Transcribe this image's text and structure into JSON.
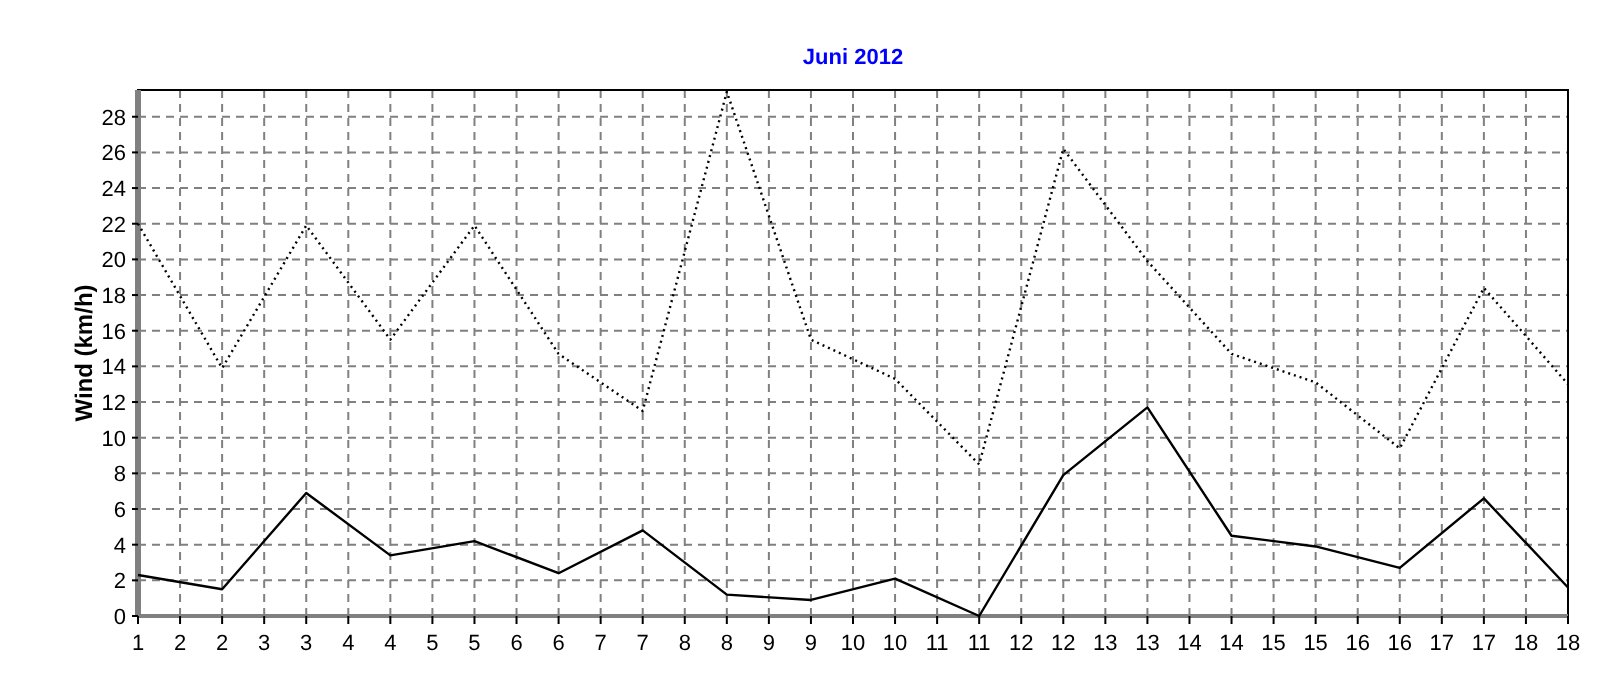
{
  "chart_data": {
    "type": "line",
    "title": "Juni 2012",
    "ylabel": "Wind  (km/h)",
    "x": [
      1,
      2,
      3,
      4,
      5,
      6,
      7,
      8,
      9,
      10,
      11,
      12,
      13,
      14,
      15,
      16,
      17,
      18
    ],
    "series": [
      {
        "color": "#000000",
        "line_style": "dotted",
        "values": [
          22.0,
          13.9,
          21.9,
          15.5,
          21.9,
          14.7,
          11.5,
          29.4,
          15.5,
          13.3,
          8.5,
          26.2,
          19.9,
          14.7,
          13.1,
          9.4,
          18.4,
          13.0
        ]
      },
      {
        "color": "#000000",
        "line_style": "solid",
        "values": [
          2.3,
          1.5,
          6.9,
          3.4,
          4.2,
          2.4,
          4.8,
          1.2,
          0.9,
          2.1,
          0,
          7.9,
          11.7,
          4.5,
          3.9,
          2.7,
          6.6,
          1.6
        ]
      }
    ],
    "xlim": [
      1,
      18
    ],
    "xticks": [
      1,
      {
        "value": 1.5,
        "label": "2"
      },
      2,
      {
        "value": 2.5,
        "label": "3"
      },
      3,
      {
        "value": 3.5,
        "label": "4"
      },
      4,
      {
        "value": 4.5,
        "label": "5"
      },
      5,
      {
        "value": 5.5,
        "label": "6"
      },
      6,
      {
        "value": 6.5,
        "label": "7"
      },
      7,
      {
        "value": 7.5,
        "label": "8"
      },
      8,
      {
        "value": 8.5,
        "label": "9"
      },
      9,
      {
        "value": 9.5,
        "label": "10"
      },
      10,
      {
        "value": 10.5,
        "label": "11"
      },
      11,
      {
        "value": 11.5,
        "label": "12"
      },
      12,
      {
        "value": 12.5,
        "label": "13"
      },
      13,
      {
        "value": 13.5,
        "label": "14"
      },
      14,
      {
        "value": 14.5,
        "label": "15"
      },
      15,
      {
        "value": 15.5,
        "label": "16"
      },
      16,
      {
        "value": 16.5,
        "label": "17"
      },
      17,
      {
        "value": 17.5,
        "label": "18"
      },
      18
    ],
    "ylim": [
      0,
      29.5
    ],
    "yticks": [
      0,
      2,
      4,
      6,
      8,
      10,
      12,
      14,
      16,
      18,
      20,
      22,
      24,
      26,
      28
    ],
    "grid": true,
    "marker": "none"
  }
}
